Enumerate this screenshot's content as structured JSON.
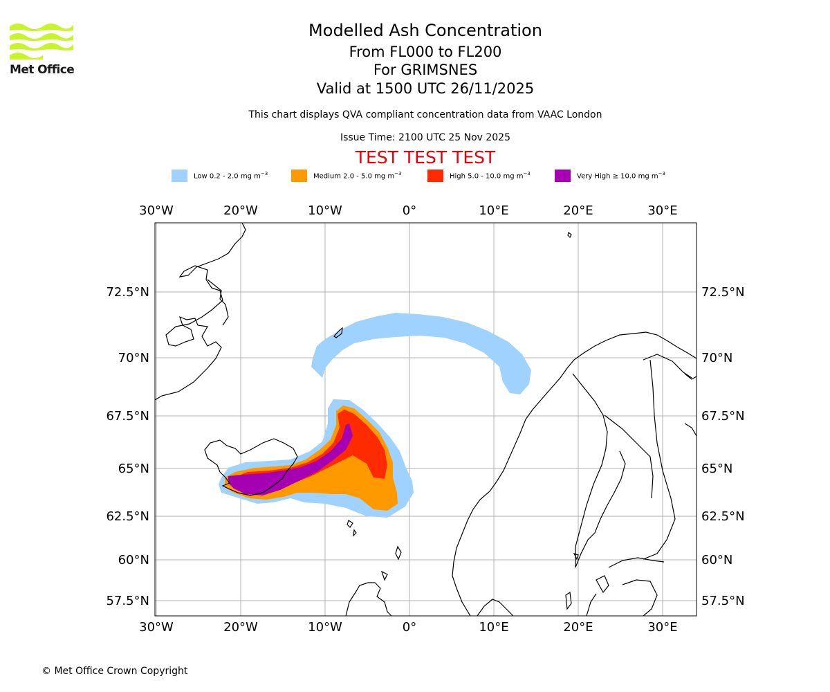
{
  "header": {
    "logo_text": "Met Office",
    "title": "Modelled Ash Concentration",
    "levels": "From FL000 to FL200",
    "volcano": "For GRIMSNES",
    "valid": "Valid at 1500 UTC 26/11/2025",
    "subtitle": "This chart displays QVA compliant concentration data from VAAC London",
    "issue_time": "Issue Time: 2100 UTC 25 Nov 2025",
    "test_banner": "TEST TEST TEST"
  },
  "legend": [
    {
      "label": "Low 0.2 - 2.0 mg m",
      "exp": "−3",
      "color": "#a0d2ff"
    },
    {
      "label": "Medium 2.0 - 5.0 mg m",
      "exp": "−3",
      "color": "#ff9900"
    },
    {
      "label": "High 5.0 - 10.0 mg m",
      "exp": "−3",
      "color": "#ff2b00"
    },
    {
      "label": "Very High  ≥  10.0 mg m",
      "exp": "−3",
      "color": "#a600b3"
    }
  ],
  "map": {
    "lon_labels": [
      "30°W",
      "20°W",
      "10°W",
      "0°",
      "10°E",
      "20°E",
      "30°E"
    ],
    "lat_labels": [
      "72.5°N",
      "70°N",
      "67.5°N",
      "65°N",
      "62.5°N",
      "60°N",
      "57.5°N"
    ],
    "colors": {
      "low": "#a0d2ff",
      "medium": "#ff9900",
      "high": "#ff2b00",
      "very_high": "#a600b3",
      "grid": "#b0b0b0",
      "logo": "#c8f52a"
    }
  },
  "footer": {
    "copyright": "© Met Office Crown Copyright"
  }
}
